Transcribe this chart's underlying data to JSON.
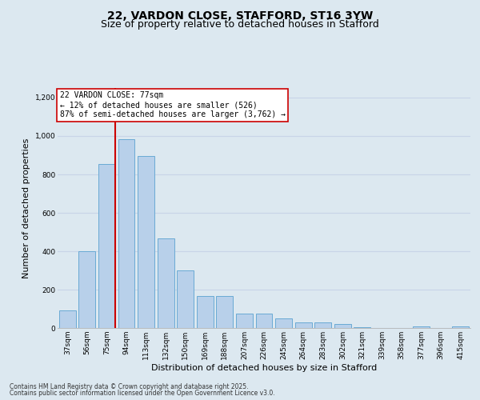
{
  "title_line1": "22, VARDON CLOSE, STAFFORD, ST16 3YW",
  "title_line2": "Size of property relative to detached houses in Stafford",
  "xlabel": "Distribution of detached houses by size in Stafford",
  "ylabel": "Number of detached properties",
  "categories": [
    "37sqm",
    "56sqm",
    "75sqm",
    "94sqm",
    "113sqm",
    "132sqm",
    "150sqm",
    "169sqm",
    "188sqm",
    "207sqm",
    "226sqm",
    "245sqm",
    "264sqm",
    "283sqm",
    "302sqm",
    "321sqm",
    "339sqm",
    "358sqm",
    "377sqm",
    "396sqm",
    "415sqm"
  ],
  "values": [
    90,
    400,
    855,
    985,
    895,
    465,
    300,
    165,
    165,
    75,
    75,
    50,
    30,
    30,
    20,
    5,
    0,
    0,
    10,
    0,
    10
  ],
  "bar_color": "#b8d0ea",
  "bar_edge_color": "#6aaad4",
  "vline_color": "#cc0000",
  "vline_x_index": 2,
  "annotation_text": "22 VARDON CLOSE: 77sqm\n← 12% of detached houses are smaller (526)\n87% of semi-detached houses are larger (3,762) →",
  "annotation_box_color": "#ffffff",
  "annotation_box_edge": "#cc0000",
  "ylim": [
    0,
    1250
  ],
  "yticks": [
    0,
    200,
    400,
    600,
    800,
    1000,
    1200
  ],
  "grid_color": "#c8d4e8",
  "bg_color": "#dce8f0",
  "footer_line1": "Contains HM Land Registry data © Crown copyright and database right 2025.",
  "footer_line2": "Contains public sector information licensed under the Open Government Licence v3.0.",
  "title_fontsize": 10,
  "subtitle_fontsize": 9,
  "axis_label_fontsize": 8,
  "tick_fontsize": 6.5,
  "annotation_fontsize": 7,
  "footer_fontsize": 5.5
}
